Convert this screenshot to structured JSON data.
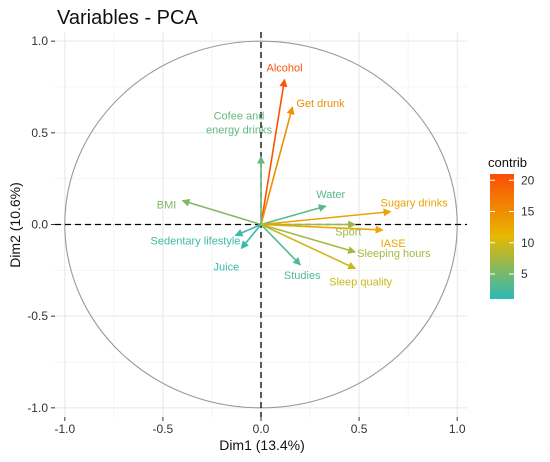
{
  "chart_data": {
    "type": "pca-correlation-circle",
    "title": "Variables - PCA",
    "xlabel": "Dim1 (13.4%)",
    "ylabel": "Dim2 (10.6%)",
    "xlim": [
      -1.05,
      1.05
    ],
    "ylim": [
      -1.05,
      1.05
    ],
    "x_ticks": [
      -1.0,
      -0.5,
      0.0,
      0.5,
      1.0
    ],
    "y_ticks": [
      -1.0,
      -0.5,
      0.0,
      0.5,
      1.0
    ],
    "x_tick_labels": [
      "-1.0",
      "-0.5",
      "0.0",
      "0.5",
      "1.0"
    ],
    "y_tick_labels": [
      "-1.0",
      "-0.5",
      "0.0",
      "0.5",
      "1.0"
    ],
    "grid": true,
    "unit_circle": true,
    "color_scale": {
      "title": "contrib",
      "min": 1,
      "max": 21,
      "ticks": [
        5,
        10,
        15,
        20
      ],
      "tick_labels": [
        "5",
        "10",
        "15",
        "20"
      ],
      "colors": [
        "#2cb9b5",
        "#e7b800",
        "#fc4e07"
      ],
      "legend_position": "right"
    },
    "variables": [
      {
        "name": "Alcohol",
        "x": 0.12,
        "y": 0.79,
        "contrib": 20.5
      },
      {
        "name": "Get drunk",
        "x": 0.16,
        "y": 0.64,
        "contrib": 15.0
      },
      {
        "name": "Cofee and\nenergy drinks",
        "x": 0.0,
        "y": 0.37,
        "contrib": 4.0
      },
      {
        "name": "Water",
        "x": 0.33,
        "y": 0.1,
        "contrib": 3.5
      },
      {
        "name": "Sugary drinks",
        "x": 0.66,
        "y": 0.07,
        "contrib": 13.0
      },
      {
        "name": "BMI",
        "x": -0.4,
        "y": 0.13,
        "contrib": 5.5
      },
      {
        "name": "Sport",
        "x": 0.48,
        "y": 0.0,
        "contrib": 7.0
      },
      {
        "name": "IASE",
        "x": 0.62,
        "y": -0.03,
        "contrib": 12.5
      },
      {
        "name": "Sedentary lifestyle",
        "x": -0.13,
        "y": -0.06,
        "contrib": 2.0
      },
      {
        "name": "Sleeping hours",
        "x": 0.48,
        "y": -0.15,
        "contrib": 7.5
      },
      {
        "name": "Juice",
        "x": -0.1,
        "y": -0.13,
        "contrib": 1.5
      },
      {
        "name": "Studies",
        "x": 0.2,
        "y": -0.22,
        "contrib": 3.0
      },
      {
        "name": "Sleep quality",
        "x": 0.48,
        "y": -0.24,
        "contrib": 9.5
      }
    ]
  }
}
